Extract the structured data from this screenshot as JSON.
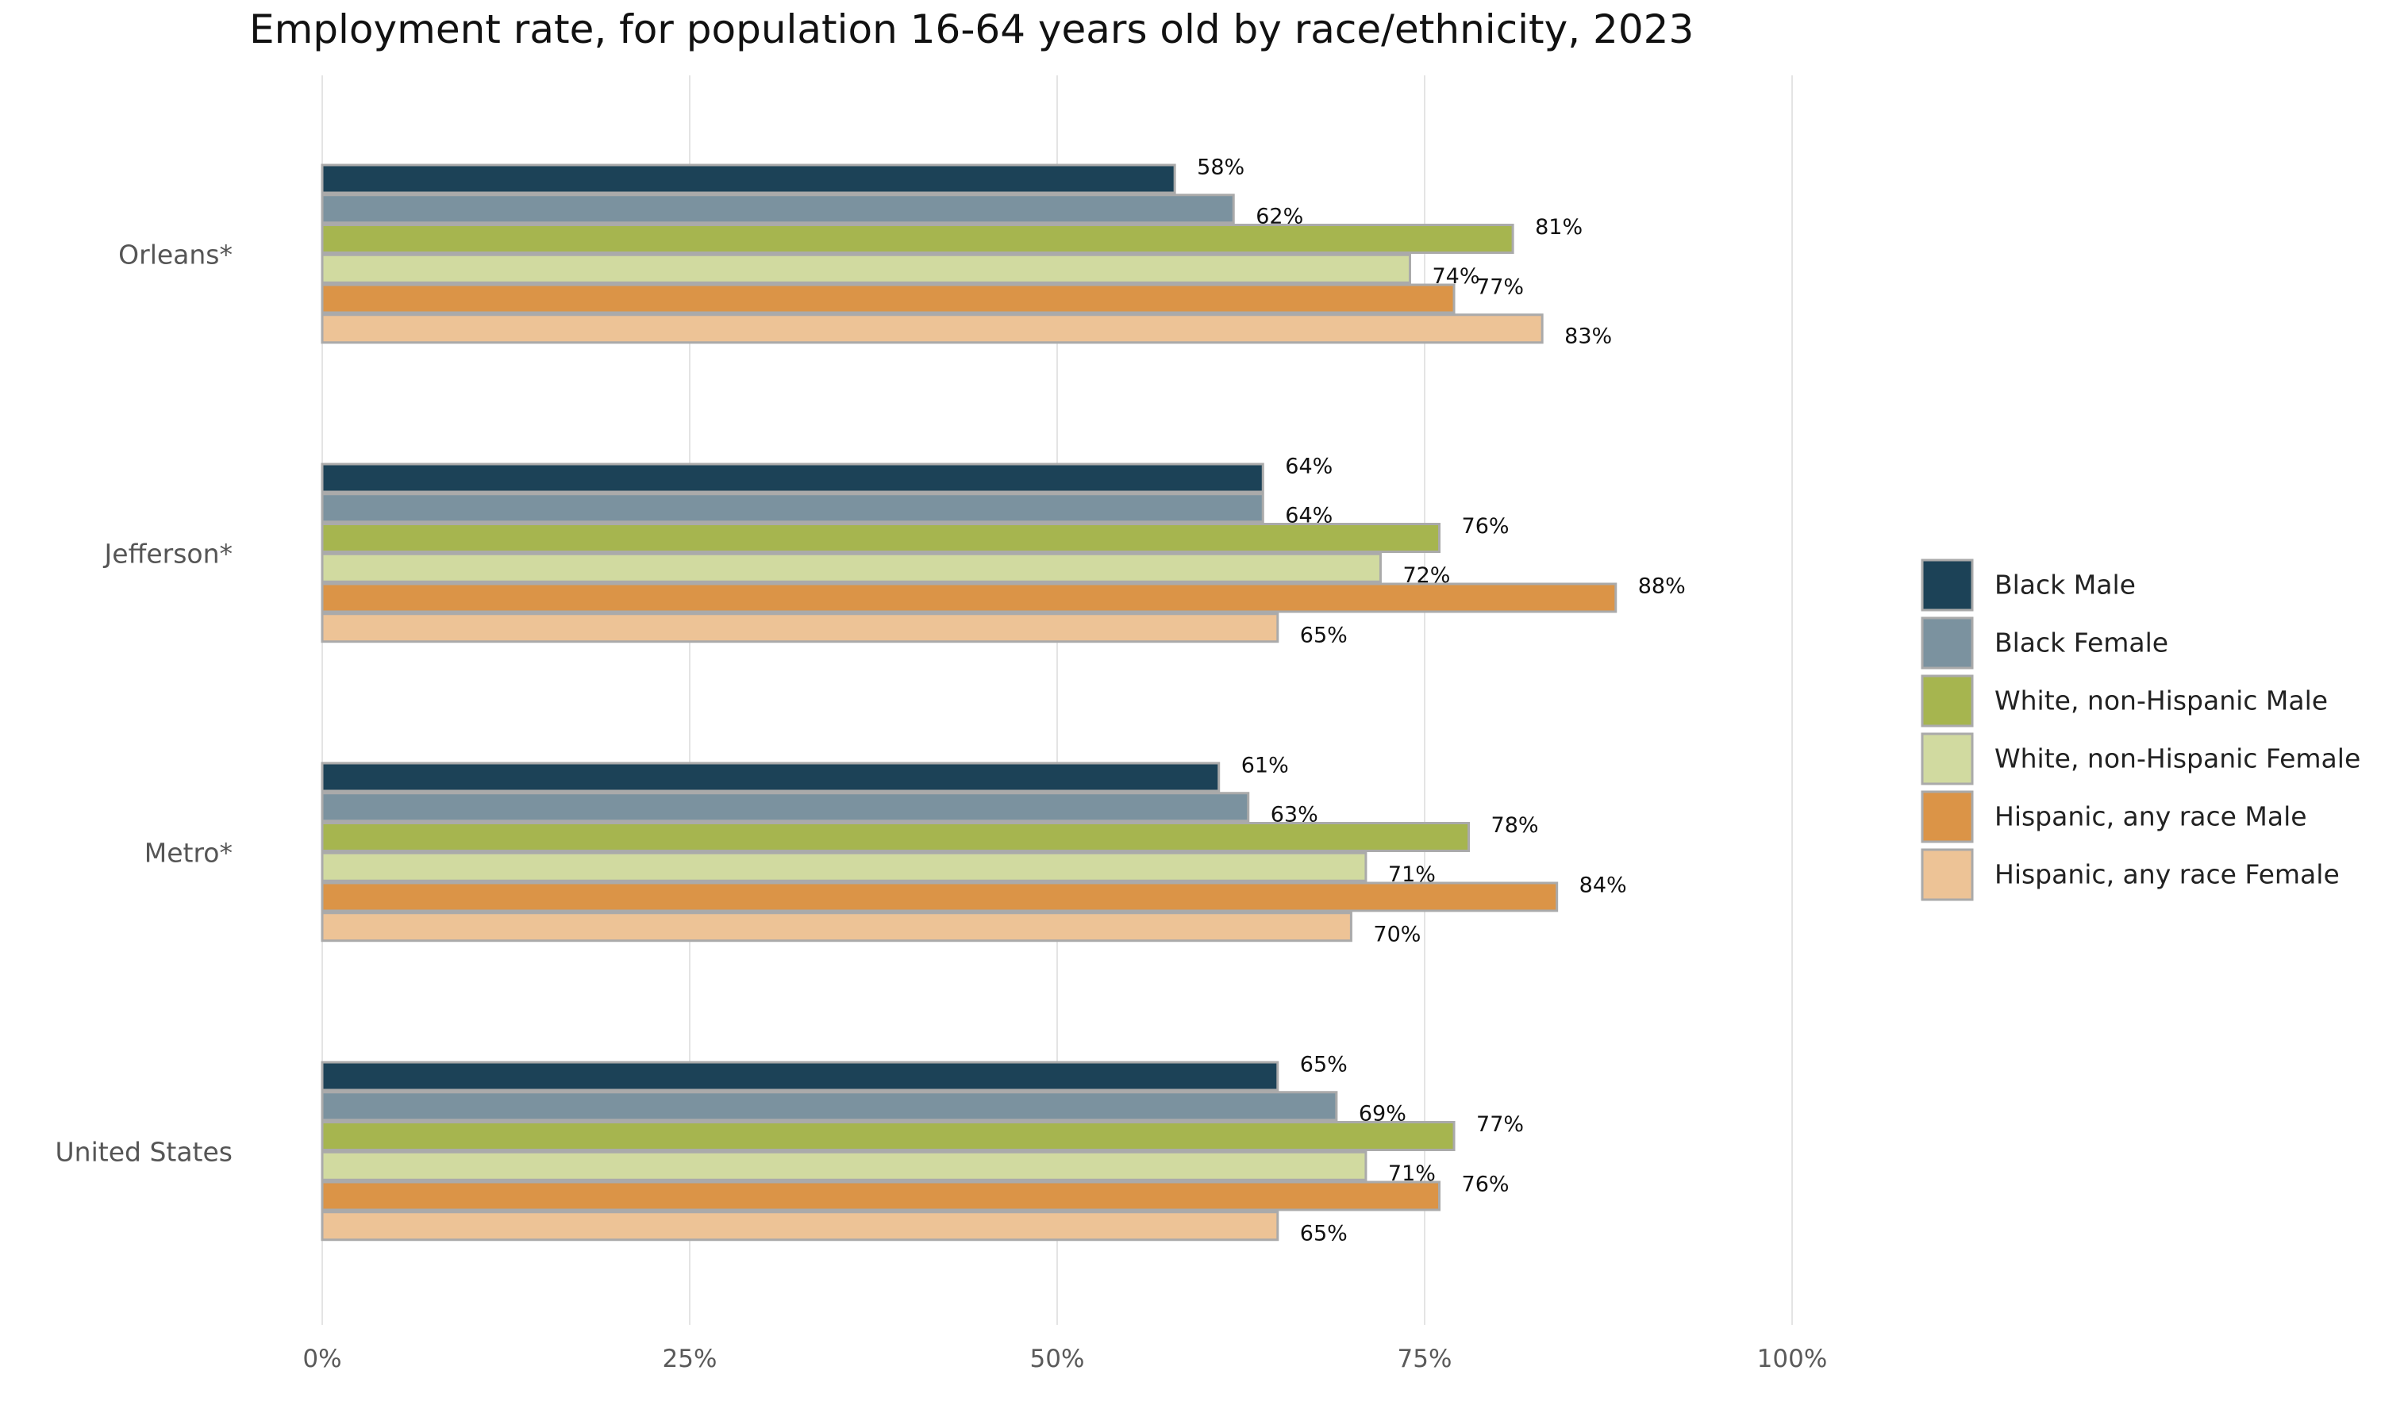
{
  "chart_data": {
    "type": "bar",
    "orientation": "horizontal",
    "title": "Employment rate, for population 16-64 years old by race/ethnicity, 2023",
    "xlabel": "",
    "ylabel": "",
    "xlim": [
      0,
      100
    ],
    "x_ticks": [
      "0%",
      "25%",
      "50%",
      "75%",
      "100%"
    ],
    "value_suffix": "%",
    "grid": "vertical",
    "legend_position": "right",
    "categories": [
      "Orleans*",
      "Jefferson*",
      "Metro*",
      "United States"
    ],
    "series": [
      {
        "name": "Black Male",
        "color": "#1c4257",
        "values": [
          58,
          64,
          61,
          65
        ]
      },
      {
        "name": "Black Female",
        "color": "#7b929f",
        "values": [
          62,
          64,
          63,
          69
        ]
      },
      {
        "name": "White, non-Hispanic Male",
        "color": "#a6b54f",
        "values": [
          81,
          76,
          78,
          77
        ]
      },
      {
        "name": "White, non-Hispanic Female",
        "color": "#d1daa0",
        "values": [
          74,
          72,
          71,
          71
        ]
      },
      {
        "name": "Hispanic, any race Male",
        "color": "#db9447",
        "values": [
          77,
          88,
          84,
          76
        ]
      },
      {
        "name": "Hispanic, any race Female",
        "color": "#edc396",
        "values": [
          83,
          65,
          70,
          65
        ]
      }
    ]
  }
}
